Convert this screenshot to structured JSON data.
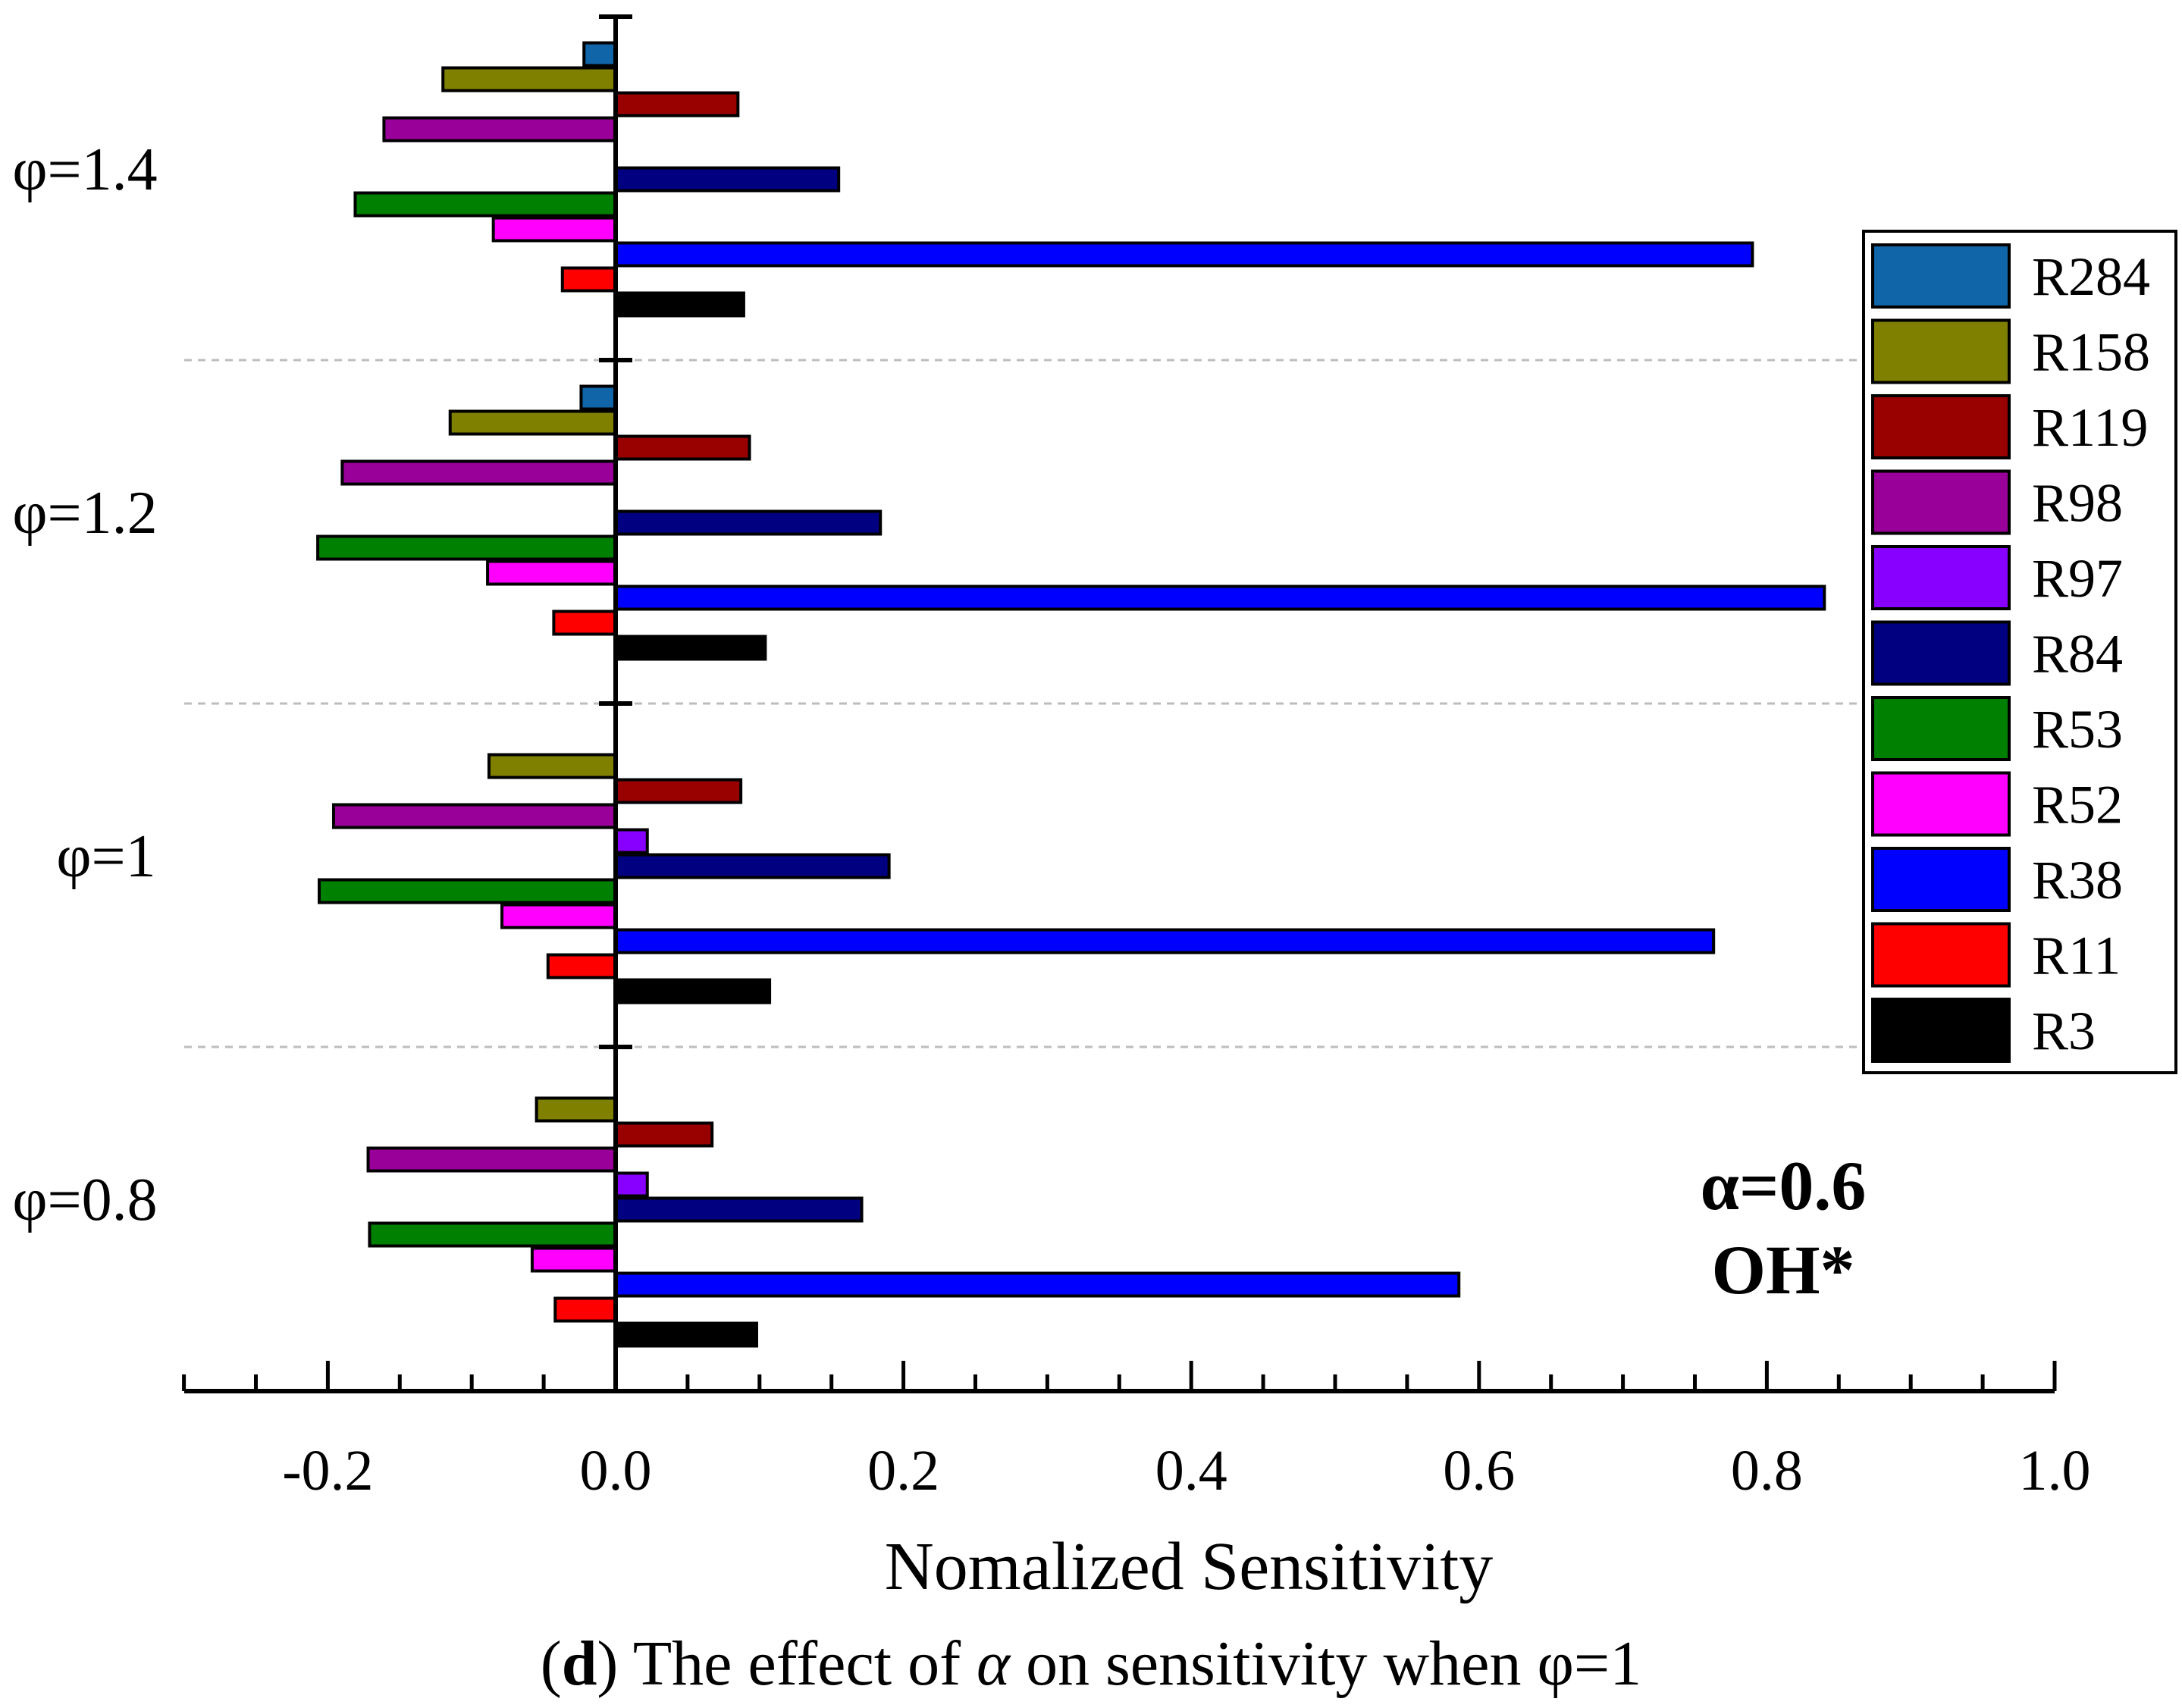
{
  "chart_data": {
    "type": "bar",
    "orientation": "horizontal",
    "xlabel": "Nomalized Sensitivity",
    "ylabel": "",
    "xlim": [
      -0.3,
      1.0
    ],
    "x_ticks": [
      -0.2,
      0.0,
      0.2,
      0.4,
      0.6,
      0.8,
      1.0
    ],
    "x_tick_labels": [
      "-0.2",
      "0.0",
      "0.2",
      "0.4",
      "0.6",
      "0.8",
      "1.0"
    ],
    "grid": "dashed separators between groups",
    "legend_position": "right",
    "categories": [
      "φ=1.4",
      "φ=1.2",
      "φ=1",
      "φ=0.8"
    ],
    "series": [
      {
        "name": "R284",
        "color": "#0f65a8",
        "values": [
          -0.022,
          -0.024,
          0,
          0
        ]
      },
      {
        "name": "R158",
        "color": "#808000",
        "values": [
          -0.12,
          -0.115,
          -0.088,
          -0.055
        ]
      },
      {
        "name": "R119",
        "color": "#990000",
        "values": [
          0.085,
          0.093,
          0.087,
          0.067
        ]
      },
      {
        "name": "R98",
        "color": "#990099",
        "values": [
          -0.161,
          -0.19,
          -0.196,
          -0.172
        ]
      },
      {
        "name": "R97",
        "color": "#8800ff",
        "values": [
          0,
          0,
          0.022,
          0.022
        ]
      },
      {
        "name": "R84",
        "color": "#000080",
        "values": [
          0.155,
          0.184,
          0.19,
          0.171
        ]
      },
      {
        "name": "R53",
        "color": "#008000",
        "values": [
          -0.181,
          -0.207,
          -0.206,
          -0.171
        ]
      },
      {
        "name": "R52",
        "color": "#ff00ff",
        "values": [
          -0.085,
          -0.089,
          -0.079,
          -0.058
        ]
      },
      {
        "name": "R38",
        "color": "#0000ff",
        "values": [
          0.79,
          0.84,
          0.763,
          0.586
        ]
      },
      {
        "name": "R11",
        "color": "#ff0000",
        "values": [
          -0.037,
          -0.043,
          -0.047,
          -0.042
        ]
      },
      {
        "name": "R3",
        "color": "#000000",
        "values": [
          0.089,
          0.104,
          0.107,
          0.098
        ]
      }
    ],
    "annotations": [
      "α=0.6",
      "OH*"
    ]
  },
  "caption": {
    "prefix": "(",
    "letter": "d",
    "text_before_alpha": ") The effect of ",
    "alpha": "α",
    "text_after_alpha": " on sensitivity when φ=1"
  }
}
